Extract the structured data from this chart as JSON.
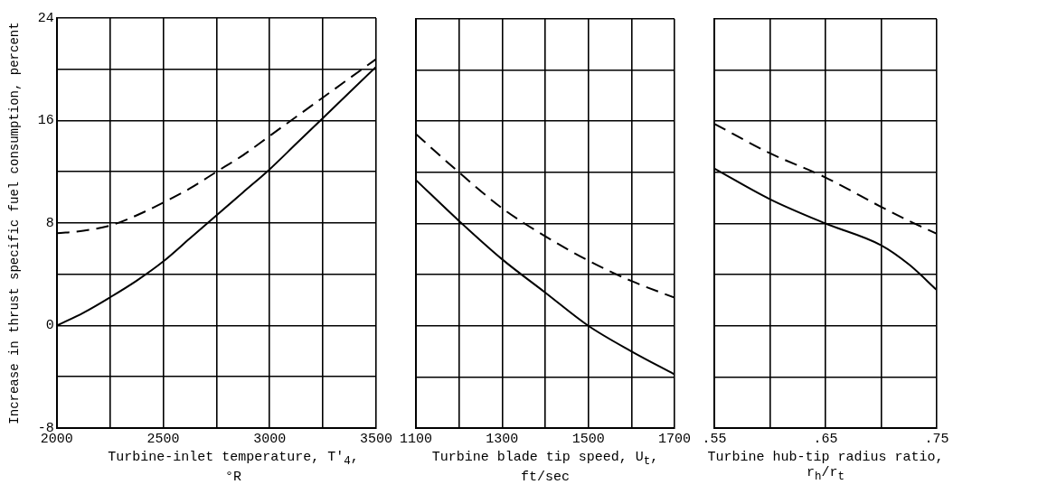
{
  "chart_data": [
    {
      "type": "line",
      "xlabel": "Turbine-inlet temperature, T′$_{4}$, °R",
      "ylabel": "Increase in thrust specific fuel consumption, percent",
      "xlim": [
        2000,
        3500
      ],
      "xticks": [
        2000,
        {
          "value": 2250,
          "label": null
        },
        2500,
        {
          "value": 2750,
          "label": null
        },
        3000,
        {
          "value": 3250,
          "label": null
        },
        3500
      ],
      "ylim": [
        -8,
        24
      ],
      "yticks": [
        -8,
        {
          "value": -4,
          "label": null
        },
        0,
        {
          "value": 4,
          "label": null
        },
        8,
        {
          "value": 12,
          "label": null
        },
        16,
        {
          "value": 20,
          "label": null
        },
        24
      ],
      "grid": true,
      "marker": "none",
      "series": [
        {
          "color": "#000000",
          "line_style": "solid",
          "x": [
            2000,
            2125,
            2250,
            2375,
            2500,
            2625,
            2750,
            2875,
            3000,
            3125,
            3250,
            3375,
            3500
          ],
          "values": [
            0,
            1,
            2.2,
            3.5,
            5,
            6.8,
            8.6,
            10.4,
            12.2,
            14.2,
            16.2,
            18.2,
            20.2
          ]
        },
        {
          "color": "#000000",
          "line_style": "dashed",
          "x": [
            2000,
            2125,
            2250,
            2375,
            2500,
            2625,
            2750,
            2875,
            3000,
            3125,
            3250,
            3375,
            3500
          ],
          "values": [
            7.2,
            7.4,
            7.8,
            8.6,
            9.6,
            10.7,
            12,
            13.3,
            14.8,
            16.3,
            17.8,
            19.3,
            20.8
          ]
        }
      ]
    },
    {
      "type": "line",
      "xlabel": "Turbine blade tip speed, U$_{t}$, ft/sec",
      "xlim": [
        1100,
        1700
      ],
      "xticks": [
        1100,
        {
          "value": 1200,
          "label": null
        },
        1300,
        {
          "value": 1400,
          "label": null
        },
        1500,
        {
          "value": 1600,
          "label": null
        },
        1700
      ],
      "ylim": [
        -8,
        24
      ],
      "yticks": [
        -8,
        -4,
        0,
        4,
        8,
        12,
        16,
        20,
        24
      ],
      "tick_labels": "x",
      "grid": true,
      "marker": "none",
      "series": [
        {
          "color": "#000000",
          "line_style": "solid",
          "x": [
            1100,
            1200,
            1300,
            1400,
            1500,
            1600,
            1700
          ],
          "values": [
            11.4,
            8.2,
            5.2,
            2.6,
            0,
            -2,
            -3.8
          ]
        },
        {
          "color": "#000000",
          "line_style": "dashed",
          "x": [
            1100,
            1200,
            1300,
            1400,
            1500,
            1600,
            1700
          ],
          "values": [
            15,
            12,
            9.2,
            7,
            5.1,
            3.5,
            2.2
          ]
        }
      ]
    },
    {
      "type": "line",
      "xlabel": "Turbine hub-tip radius ratio, r$_{h}$/r$_{t}$",
      "xlim": [
        0.55,
        0.75
      ],
      "xticks": [
        {
          "value": 0.55,
          "label": ".55"
        },
        {
          "value": 0.6,
          "label": null
        },
        {
          "value": 0.65,
          "label": ".65"
        },
        {
          "value": 0.7,
          "label": null
        },
        {
          "value": 0.75,
          "label": ".75"
        }
      ],
      "ylim": [
        -8,
        24
      ],
      "yticks": [
        -8,
        -4,
        0,
        4,
        8,
        12,
        16,
        20,
        24
      ],
      "tick_labels": "x",
      "grid": true,
      "marker": "none",
      "series": [
        {
          "color": "#000000",
          "line_style": "solid",
          "x": [
            0.55,
            0.6,
            0.65,
            0.7,
            0.725,
            0.75
          ],
          "values": [
            12.3,
            9.9,
            8,
            6.3,
            4.8,
            2.8
          ]
        },
        {
          "color": "#000000",
          "line_style": "dashed",
          "x": [
            0.55,
            0.6,
            0.65,
            0.7,
            0.725,
            0.75
          ],
          "values": [
            15.8,
            13.5,
            11.6,
            9.3,
            8.2,
            7.2
          ]
        }
      ]
    }
  ]
}
